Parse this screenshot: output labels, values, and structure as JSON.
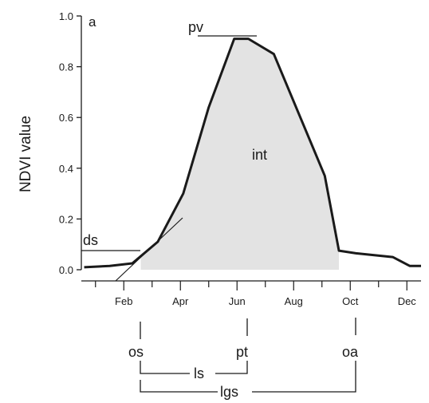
{
  "chart_data": {
    "type": "area",
    "panel_label": "a",
    "ylabel": "NDVI value",
    "xlabel": "",
    "ylim": [
      0.0,
      1.0
    ],
    "yticks": [
      0.0,
      0.2,
      0.4,
      0.6,
      0.8,
      1.0
    ],
    "ytick_labels": [
      "0.0",
      "0.2",
      "0.4",
      "0.6",
      "0.8",
      "1.0"
    ],
    "xlim": [
      0.5,
      12.5
    ],
    "xticks_major": [
      2,
      4,
      6,
      8,
      10,
      12
    ],
    "xtick_labels": [
      "Feb",
      "Apr",
      "Jun",
      "Aug",
      "Oct",
      "Dec"
    ],
    "series": [
      {
        "x": [
          0.6,
          1.5,
          2.3,
          3.2,
          4.1,
          5.0,
          5.9,
          6.4,
          7.3,
          8.2,
          9.1,
          9.6,
          10.2,
          11.5,
          12.1,
          12.5
        ],
        "y": [
          0.01,
          0.015,
          0.025,
          0.11,
          0.3,
          0.64,
          0.91,
          0.91,
          0.85,
          0.61,
          0.37,
          0.075,
          0.065,
          0.05,
          0.015,
          0.015
        ]
      }
    ],
    "shaded_region": {
      "label": "int",
      "x_start": 2.6,
      "x_end": 9.6,
      "color": "#e3e3e3"
    },
    "annotations": {
      "pv": "pv",
      "ds": "ds",
      "int": "int",
      "os": "os",
      "pt": "pt",
      "oa": "oa",
      "ls": "ls",
      "lgs": "lgs"
    },
    "colors": {
      "line": "#1a1a1a",
      "fill": "#e3e3e3"
    },
    "grid": false
  }
}
